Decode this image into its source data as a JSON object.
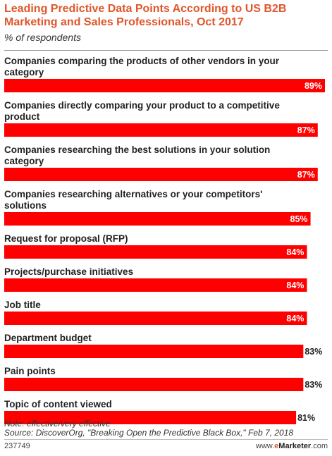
{
  "header": {
    "title": "Leading Predictive Data Points According to US B2B Marketing and Sales Professionals, Oct 2017",
    "subtitle": "% of respondents"
  },
  "chart_data": {
    "type": "bar",
    "orientation": "horizontal",
    "title": "Leading Predictive Data Points According to US B2B Marketing and Sales Professionals, Oct 2017",
    "subtitle": "% of respondents",
    "categories": [
      "Companies comparing the products of other vendors in your category",
      "Companies directly comparing your product to a competitive product",
      "Companies researching the best solutions in your solution category",
      "Companies researching alternatives or your competitors' solutions",
      "Request for proposal (RFP)",
      "Projects/purchase initiatives",
      "Job title",
      "Department budget",
      "Pain points",
      "Topic of content viewed"
    ],
    "category_lines": [
      [
        "Companies comparing the products of other vendors in your",
        "category"
      ],
      [
        "Companies directly comparing your product to a competitive",
        "product"
      ],
      [
        "Companies researching the best solutions in your solution",
        "category"
      ],
      [
        "Companies researching alternatives or your competitors'",
        "solutions"
      ],
      [
        "Request for proposal (RFP)"
      ],
      [
        "Projects/purchase initiatives"
      ],
      [
        "Job title"
      ],
      [
        "Department budget"
      ],
      [
        "Pain points"
      ],
      [
        "Topic of content viewed"
      ]
    ],
    "values": [
      89,
      87,
      87,
      85,
      84,
      84,
      84,
      83,
      83,
      81
    ],
    "value_labels": [
      "89%",
      "87%",
      "87%",
      "85%",
      "84%",
      "84%",
      "84%",
      "83%",
      "83%",
      "81%"
    ],
    "bar_color": "#ff0000",
    "xlim": [
      0,
      89
    ],
    "grid": false,
    "legend": "none"
  },
  "footer": {
    "note": "Note: effective/very effective",
    "source": "Source: DiscoverOrg, \"Breaking Open the Predictive Black Box,\" Feb 7, 2018",
    "chart_id": "237749",
    "brand_prefix": "www.",
    "brand_e": "e",
    "brand_name": "Marketer",
    "brand_suffix": ".com"
  }
}
